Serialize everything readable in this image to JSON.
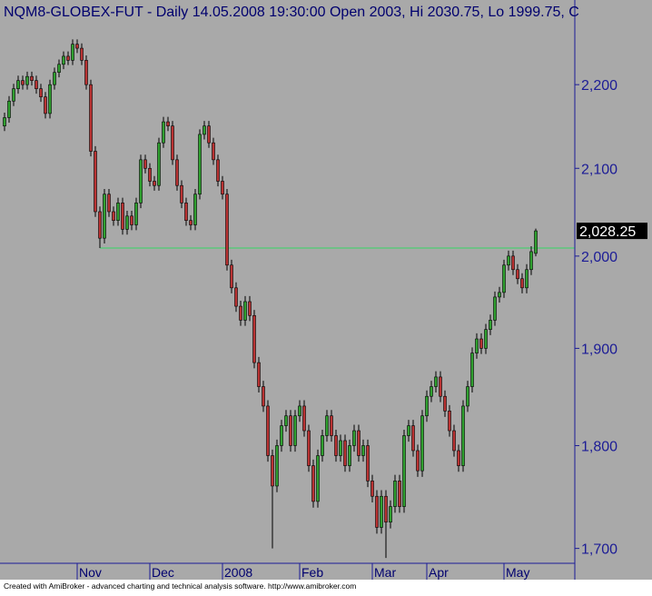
{
  "chart_data": {
    "type": "candlestick",
    "title": "NQM8-GLOBEX-FUT - Daily 14.05.2008 19:30:00 Open 2003, Hi 2030.75, Lo 1999.75, C",
    "footer": "Created with AmiBroker - advanced charting and technical analysis software. http://www.amibroker.com",
    "log_scale": true,
    "ylim": [
      1686,
      2306
    ],
    "yticks": [
      {
        "value": 1700,
        "label": "1,700"
      },
      {
        "value": 1800,
        "label": "1,800"
      },
      {
        "value": 1900,
        "label": "1,900"
      },
      {
        "value": 2000,
        "label": "2,000"
      },
      {
        "value": 2100,
        "label": "2,100"
      },
      {
        "value": 2200,
        "label": "2,200"
      }
    ],
    "xlim": [
      -1,
      125.6
    ],
    "xticks": [
      {
        "value": 16,
        "label": "Nov"
      },
      {
        "value": 32,
        "label": "Dec"
      },
      {
        "value": 48,
        "label": "2008"
      },
      {
        "value": 65,
        "label": "Feb"
      },
      {
        "value": 81,
        "label": "Mar"
      },
      {
        "value": 93,
        "label": "Apr"
      },
      {
        "value": 110,
        "label": "May"
      }
    ],
    "open": [
      2150,
      2160,
      2180,
      2195,
      2205,
      2200,
      2210,
      2205,
      2195,
      2185,
      2165,
      2200,
      2215,
      2225,
      2235,
      2230,
      2250,
      2245,
      2230,
      2200,
      2120,
      2050,
      2020,
      2070,
      2050,
      2040,
      2060,
      2030,
      2045,
      2035,
      2060,
      2110,
      2100,
      2085,
      2080,
      2130,
      2155,
      2150,
      2110,
      2080,
      2060,
      2040,
      2035,
      2070,
      2140,
      2150,
      2130,
      2110,
      2085,
      2070,
      1990,
      1965,
      1945,
      1930,
      1950,
      1935,
      1885,
      1860,
      1840,
      1790,
      1760,
      1800,
      1820,
      1830,
      1800,
      1830,
      1840,
      1815,
      1780,
      1745,
      1790,
      1810,
      1830,
      1810,
      1790,
      1805,
      1780,
      1800,
      1815,
      1790,
      1800,
      1765,
      1750,
      1720,
      1750,
      1725,
      1740,
      1765,
      1740,
      1810,
      1820,
      1795,
      1775,
      1830,
      1850,
      1860,
      1870,
      1850,
      1835,
      1815,
      1795,
      1780,
      1840,
      1860,
      1895,
      1910,
      1900,
      1920,
      1930,
      1955,
      1960,
      1990,
      2000,
      1985,
      1975,
      1965,
      1985,
      2003
    ],
    "high": [
      2166,
      2186,
      2201,
      2211,
      2211,
      2216,
      2216,
      2211,
      2201,
      2191,
      2206,
      2221,
      2231,
      2241,
      2241,
      2256,
      2256,
      2251,
      2236,
      2206,
      2126,
      2056,
      2076,
      2076,
      2056,
      2066,
      2066,
      2051,
      2051,
      2066,
      2116,
      2116,
      2106,
      2091,
      2136,
      2161,
      2161,
      2156,
      2116,
      2086,
      2066,
      2046,
      2076,
      2146,
      2156,
      2156,
      2136,
      2116,
      2091,
      2076,
      1996,
      1971,
      1951,
      1956,
      1956,
      1941,
      1891,
      1866,
      1846,
      1796,
      1806,
      1826,
      1836,
      1836,
      1836,
      1846,
      1846,
      1821,
      1786,
      1796,
      1816,
      1836,
      1836,
      1816,
      1811,
      1811,
      1806,
      1821,
      1821,
      1806,
      1806,
      1771,
      1756,
      1756,
      1756,
      1746,
      1771,
      1771,
      1816,
      1826,
      1826,
      1801,
      1836,
      1856,
      1866,
      1876,
      1876,
      1856,
      1841,
      1821,
      1801,
      1846,
      1866,
      1901,
      1916,
      1916,
      1926,
      1936,
      1961,
      1966,
      1996,
      2006,
      2006,
      1991,
      1981,
      1991,
      2011,
      2030.75
    ],
    "low": [
      2144,
      2154,
      2174,
      2189,
      2194,
      2194,
      2199,
      2189,
      2179,
      2159,
      2159,
      2194,
      2209,
      2219,
      2224,
      2224,
      2239,
      2224,
      2194,
      2114,
      2044,
      2009,
      2014,
      2044,
      2034,
      2034,
      2024,
      2024,
      2029,
      2029,
      2054,
      2094,
      2079,
      2074,
      2074,
      2124,
      2144,
      2104,
      2074,
      2054,
      2034,
      2029,
      2029,
      2064,
      2134,
      2124,
      2104,
      2079,
      2064,
      1984,
      1959,
      1939,
      1924,
      1924,
      1929,
      1879,
      1854,
      1834,
      1784,
      1700,
      1754,
      1794,
      1814,
      1794,
      1794,
      1824,
      1809,
      1774,
      1739,
      1739,
      1784,
      1804,
      1804,
      1784,
      1784,
      1774,
      1774,
      1794,
      1784,
      1784,
      1759,
      1744,
      1714,
      1714,
      1691,
      1719,
      1734,
      1734,
      1734,
      1804,
      1789,
      1769,
      1769,
      1824,
      1844,
      1854,
      1844,
      1829,
      1809,
      1789,
      1774,
      1774,
      1834,
      1854,
      1889,
      1894,
      1894,
      1914,
      1924,
      1949,
      1954,
      1984,
      1979,
      1969,
      1959,
      1959,
      1979,
      1999.75
    ],
    "close": [
      2160,
      2180,
      2195,
      2205,
      2200,
      2210,
      2205,
      2195,
      2185,
      2165,
      2200,
      2215,
      2225,
      2235,
      2230,
      2250,
      2245,
      2230,
      2200,
      2120,
      2050,
      2020,
      2070,
      2050,
      2040,
      2060,
      2030,
      2045,
      2035,
      2060,
      2110,
      2100,
      2085,
      2080,
      2130,
      2155,
      2150,
      2110,
      2080,
      2060,
      2040,
      2035,
      2070,
      2140,
      2150,
      2130,
      2110,
      2085,
      2070,
      1990,
      1965,
      1945,
      1930,
      1950,
      1935,
      1885,
      1860,
      1840,
      1790,
      1760,
      1800,
      1820,
      1830,
      1800,
      1830,
      1840,
      1815,
      1780,
      1745,
      1790,
      1810,
      1830,
      1810,
      1790,
      1805,
      1780,
      1800,
      1815,
      1790,
      1800,
      1765,
      1750,
      1720,
      1750,
      1725,
      1740,
      1765,
      1740,
      1810,
      1820,
      1795,
      1775,
      1830,
      1850,
      1860,
      1870,
      1850,
      1835,
      1815,
      1795,
      1780,
      1840,
      1860,
      1895,
      1910,
      1900,
      1920,
      1930,
      1955,
      1960,
      1990,
      2000,
      1985,
      1975,
      1965,
      1985,
      2005,
      2028.25
    ],
    "last_price_label": "2,028.25",
    "hline": {
      "value": 2009,
      "start": 21,
      "color": "#5cc87a"
    },
    "up_color": "#2f9f2f",
    "down_color": "#b83232",
    "background": "#a9a9a9",
    "axis_color": "#1c1c96"
  }
}
